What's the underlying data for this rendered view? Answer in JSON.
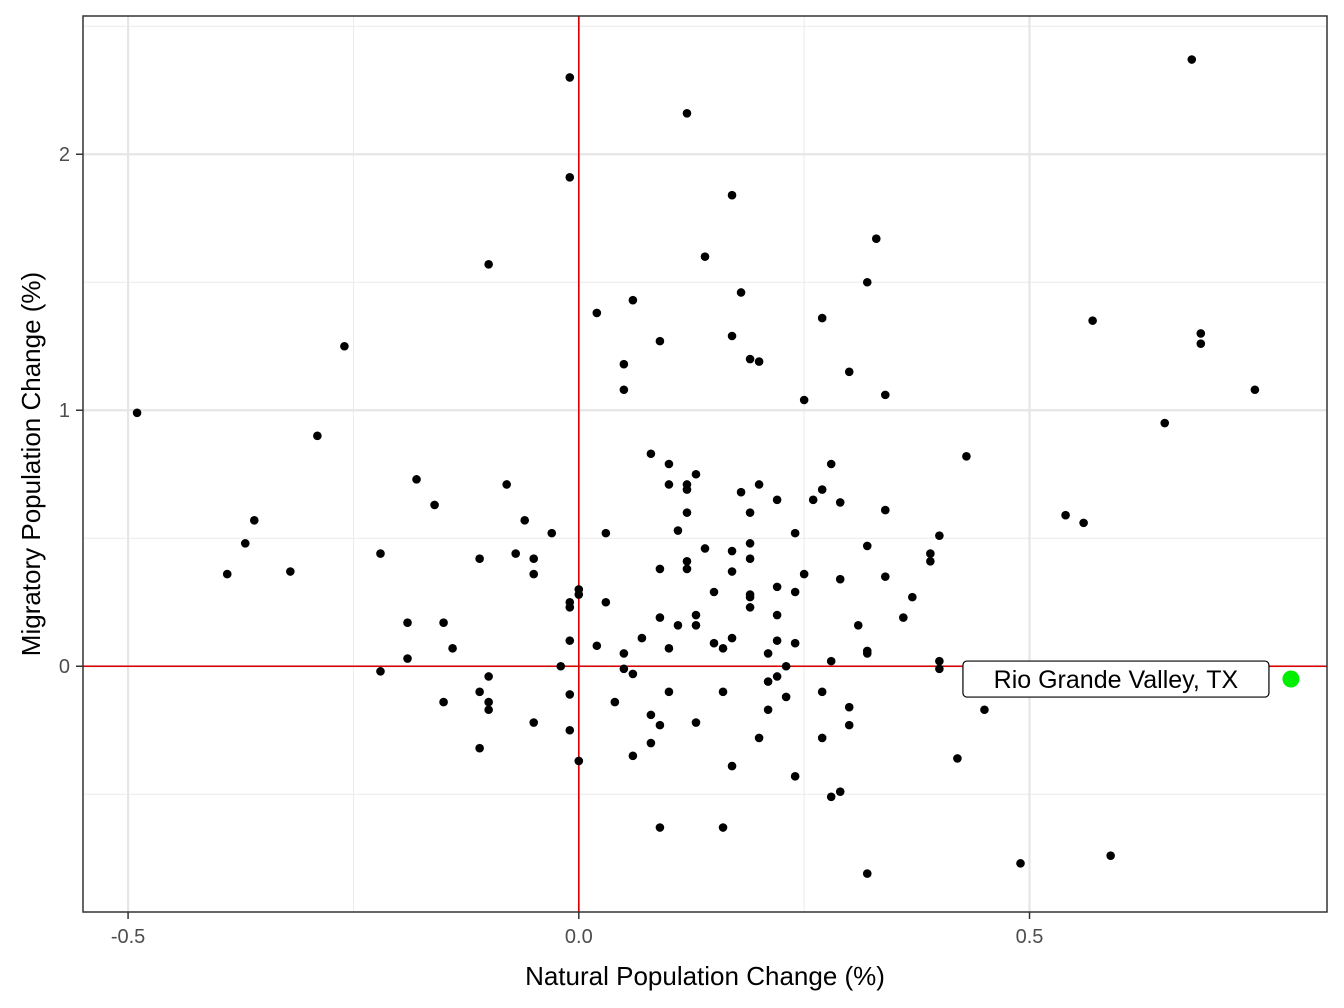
{
  "chart_data": {
    "type": "scatter",
    "xlabel": "Natural Population Change (%)",
    "ylabel": "Migratory Population Change (%)",
    "xlim": [
      -0.55,
      0.83
    ],
    "ylim": [
      -0.96,
      2.54
    ],
    "x_ticks": [
      -0.5,
      0.0,
      0.5
    ],
    "x_tick_labels": [
      "-0.5",
      "0.0",
      "0.5"
    ],
    "y_ticks": [
      0,
      1,
      2
    ],
    "y_tick_labels": [
      "0",
      "1",
      "2"
    ],
    "grid": true,
    "reference_lines": {
      "x": 0,
      "y": 0,
      "color": "#dd0000"
    },
    "point_color": "#000000",
    "highlight_color": "#00ee00",
    "points": [
      {
        "x": -0.49,
        "y": 0.99
      },
      {
        "x": -0.39,
        "y": 0.36
      },
      {
        "x": -0.37,
        "y": 0.48
      },
      {
        "x": -0.36,
        "y": 0.57
      },
      {
        "x": -0.32,
        "y": 0.37
      },
      {
        "x": -0.29,
        "y": 0.9
      },
      {
        "x": -0.26,
        "y": 1.25
      },
      {
        "x": -0.22,
        "y": 0.44
      },
      {
        "x": -0.22,
        "y": -0.02
      },
      {
        "x": -0.19,
        "y": 0.17
      },
      {
        "x": -0.19,
        "y": 0.03
      },
      {
        "x": -0.18,
        "y": 0.73
      },
      {
        "x": -0.16,
        "y": 0.63
      },
      {
        "x": -0.15,
        "y": 0.17
      },
      {
        "x": -0.15,
        "y": -0.14
      },
      {
        "x": -0.14,
        "y": 0.07
      },
      {
        "x": -0.11,
        "y": 0.42
      },
      {
        "x": -0.11,
        "y": -0.1
      },
      {
        "x": -0.11,
        "y": -0.32
      },
      {
        "x": -0.1,
        "y": 1.57
      },
      {
        "x": -0.1,
        "y": -0.04
      },
      {
        "x": -0.1,
        "y": -0.14
      },
      {
        "x": -0.1,
        "y": -0.17
      },
      {
        "x": -0.08,
        "y": 0.71
      },
      {
        "x": -0.07,
        "y": 0.44
      },
      {
        "x": -0.06,
        "y": 0.57
      },
      {
        "x": -0.05,
        "y": 0.42
      },
      {
        "x": -0.05,
        "y": 0.36
      },
      {
        "x": -0.05,
        "y": -0.22
      },
      {
        "x": -0.03,
        "y": 0.52
      },
      {
        "x": -0.02,
        "y": 0.0
      },
      {
        "x": -0.01,
        "y": 2.3
      },
      {
        "x": -0.01,
        "y": 1.91
      },
      {
        "x": -0.01,
        "y": 0.25
      },
      {
        "x": -0.01,
        "y": 0.23
      },
      {
        "x": -0.01,
        "y": 0.1
      },
      {
        "x": -0.01,
        "y": -0.11
      },
      {
        "x": -0.01,
        "y": -0.25
      },
      {
        "x": 0.0,
        "y": 0.3
      },
      {
        "x": 0.0,
        "y": 0.28
      },
      {
        "x": 0.0,
        "y": -0.37
      },
      {
        "x": 0.02,
        "y": 1.38
      },
      {
        "x": 0.02,
        "y": 0.08
      },
      {
        "x": 0.03,
        "y": 0.52
      },
      {
        "x": 0.03,
        "y": 0.25
      },
      {
        "x": 0.04,
        "y": -0.14
      },
      {
        "x": 0.05,
        "y": 1.18
      },
      {
        "x": 0.05,
        "y": 1.08
      },
      {
        "x": 0.05,
        "y": 0.05
      },
      {
        "x": 0.05,
        "y": -0.01
      },
      {
        "x": 0.06,
        "y": 1.43
      },
      {
        "x": 0.06,
        "y": -0.03
      },
      {
        "x": 0.06,
        "y": -0.35
      },
      {
        "x": 0.07,
        "y": 0.11
      },
      {
        "x": 0.08,
        "y": 0.83
      },
      {
        "x": 0.08,
        "y": -0.19
      },
      {
        "x": 0.08,
        "y": -0.3
      },
      {
        "x": 0.09,
        "y": 1.27
      },
      {
        "x": 0.09,
        "y": 0.38
      },
      {
        "x": 0.09,
        "y": 0.19
      },
      {
        "x": 0.09,
        "y": -0.23
      },
      {
        "x": 0.09,
        "y": -0.63
      },
      {
        "x": 0.1,
        "y": 0.79
      },
      {
        "x": 0.1,
        "y": 0.71
      },
      {
        "x": 0.1,
        "y": 0.07
      },
      {
        "x": 0.1,
        "y": -0.1
      },
      {
        "x": 0.11,
        "y": 0.53
      },
      {
        "x": 0.11,
        "y": 0.16
      },
      {
        "x": 0.12,
        "y": 2.16
      },
      {
        "x": 0.12,
        "y": 0.71
      },
      {
        "x": 0.12,
        "y": 0.69
      },
      {
        "x": 0.12,
        "y": 0.6
      },
      {
        "x": 0.12,
        "y": 0.41
      },
      {
        "x": 0.12,
        "y": 0.38
      },
      {
        "x": 0.13,
        "y": 0.75
      },
      {
        "x": 0.13,
        "y": 0.2
      },
      {
        "x": 0.13,
        "y": 0.16
      },
      {
        "x": 0.13,
        "y": -0.22
      },
      {
        "x": 0.14,
        "y": 1.6
      },
      {
        "x": 0.14,
        "y": 0.46
      },
      {
        "x": 0.15,
        "y": 0.29
      },
      {
        "x": 0.15,
        "y": 0.09
      },
      {
        "x": 0.16,
        "y": 0.07
      },
      {
        "x": 0.16,
        "y": -0.1
      },
      {
        "x": 0.16,
        "y": -0.63
      },
      {
        "x": 0.17,
        "y": 1.84
      },
      {
        "x": 0.17,
        "y": 1.29
      },
      {
        "x": 0.17,
        "y": 0.45
      },
      {
        "x": 0.17,
        "y": 0.37
      },
      {
        "x": 0.17,
        "y": 0.11
      },
      {
        "x": 0.17,
        "y": -0.39
      },
      {
        "x": 0.18,
        "y": 1.46
      },
      {
        "x": 0.18,
        "y": 0.68
      },
      {
        "x": 0.19,
        "y": 1.2
      },
      {
        "x": 0.19,
        "y": 0.6
      },
      {
        "x": 0.19,
        "y": 0.48
      },
      {
        "x": 0.19,
        "y": 0.42
      },
      {
        "x": 0.19,
        "y": 0.28
      },
      {
        "x": 0.19,
        "y": 0.27
      },
      {
        "x": 0.19,
        "y": 0.23
      },
      {
        "x": 0.2,
        "y": 1.19
      },
      {
        "x": 0.2,
        "y": 0.71
      },
      {
        "x": 0.2,
        "y": -0.28
      },
      {
        "x": 0.21,
        "y": 0.05
      },
      {
        "x": 0.21,
        "y": -0.06
      },
      {
        "x": 0.21,
        "y": -0.17
      },
      {
        "x": 0.22,
        "y": 0.65
      },
      {
        "x": 0.22,
        "y": 0.31
      },
      {
        "x": 0.22,
        "y": 0.2
      },
      {
        "x": 0.22,
        "y": 0.1
      },
      {
        "x": 0.22,
        "y": -0.04
      },
      {
        "x": 0.23,
        "y": 0.0
      },
      {
        "x": 0.23,
        "y": -0.12
      },
      {
        "x": 0.24,
        "y": 0.52
      },
      {
        "x": 0.24,
        "y": 0.29
      },
      {
        "x": 0.24,
        "y": 0.09
      },
      {
        "x": 0.24,
        "y": -0.43
      },
      {
        "x": 0.25,
        "y": 1.04
      },
      {
        "x": 0.25,
        "y": 0.36
      },
      {
        "x": 0.26,
        "y": 0.65
      },
      {
        "x": 0.27,
        "y": 1.36
      },
      {
        "x": 0.27,
        "y": 0.69
      },
      {
        "x": 0.27,
        "y": -0.1
      },
      {
        "x": 0.27,
        "y": -0.28
      },
      {
        "x": 0.28,
        "y": 0.79
      },
      {
        "x": 0.28,
        "y": 0.02
      },
      {
        "x": 0.28,
        "y": -0.51
      },
      {
        "x": 0.29,
        "y": 0.64
      },
      {
        "x": 0.29,
        "y": 0.34
      },
      {
        "x": 0.29,
        "y": -0.49
      },
      {
        "x": 0.3,
        "y": 1.15
      },
      {
        "x": 0.3,
        "y": -0.16
      },
      {
        "x": 0.3,
        "y": -0.23
      },
      {
        "x": 0.31,
        "y": 0.16
      },
      {
        "x": 0.32,
        "y": 1.5
      },
      {
        "x": 0.32,
        "y": 0.47
      },
      {
        "x": 0.32,
        "y": 0.06
      },
      {
        "x": 0.32,
        "y": 0.05
      },
      {
        "x": 0.32,
        "y": -0.81
      },
      {
        "x": 0.33,
        "y": 1.67
      },
      {
        "x": 0.34,
        "y": 1.06
      },
      {
        "x": 0.34,
        "y": 0.61
      },
      {
        "x": 0.34,
        "y": 0.35
      },
      {
        "x": 0.36,
        "y": 0.19
      },
      {
        "x": 0.37,
        "y": 0.27
      },
      {
        "x": 0.39,
        "y": 0.44
      },
      {
        "x": 0.39,
        "y": 0.41
      },
      {
        "x": 0.4,
        "y": 0.51
      },
      {
        "x": 0.4,
        "y": 0.02
      },
      {
        "x": 0.4,
        "y": -0.01
      },
      {
        "x": 0.42,
        "y": -0.36
      },
      {
        "x": 0.43,
        "y": 0.82
      },
      {
        "x": 0.45,
        "y": -0.17
      },
      {
        "x": 0.49,
        "y": -0.77
      },
      {
        "x": 0.54,
        "y": 0.59
      },
      {
        "x": 0.56,
        "y": 0.56
      },
      {
        "x": 0.57,
        "y": 1.35
      },
      {
        "x": 0.59,
        "y": -0.74
      },
      {
        "x": 0.65,
        "y": 0.95
      },
      {
        "x": 0.68,
        "y": 2.37
      },
      {
        "x": 0.69,
        "y": 1.3
      },
      {
        "x": 0.69,
        "y": 1.26
      },
      {
        "x": 0.75,
        "y": 1.08
      }
    ],
    "highlight": {
      "label": "Rio Grande Valley, TX",
      "x": 0.79,
      "y": -0.05
    }
  }
}
